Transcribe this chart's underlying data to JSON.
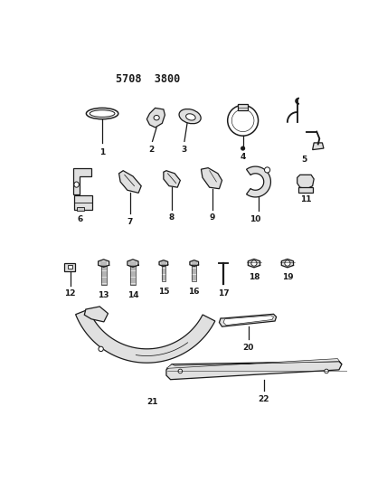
{
  "title": "5708  3800",
  "bg_color": "#ffffff",
  "lw": 0.9,
  "color": "#1a1a1a",
  "label_fs": 6.5
}
